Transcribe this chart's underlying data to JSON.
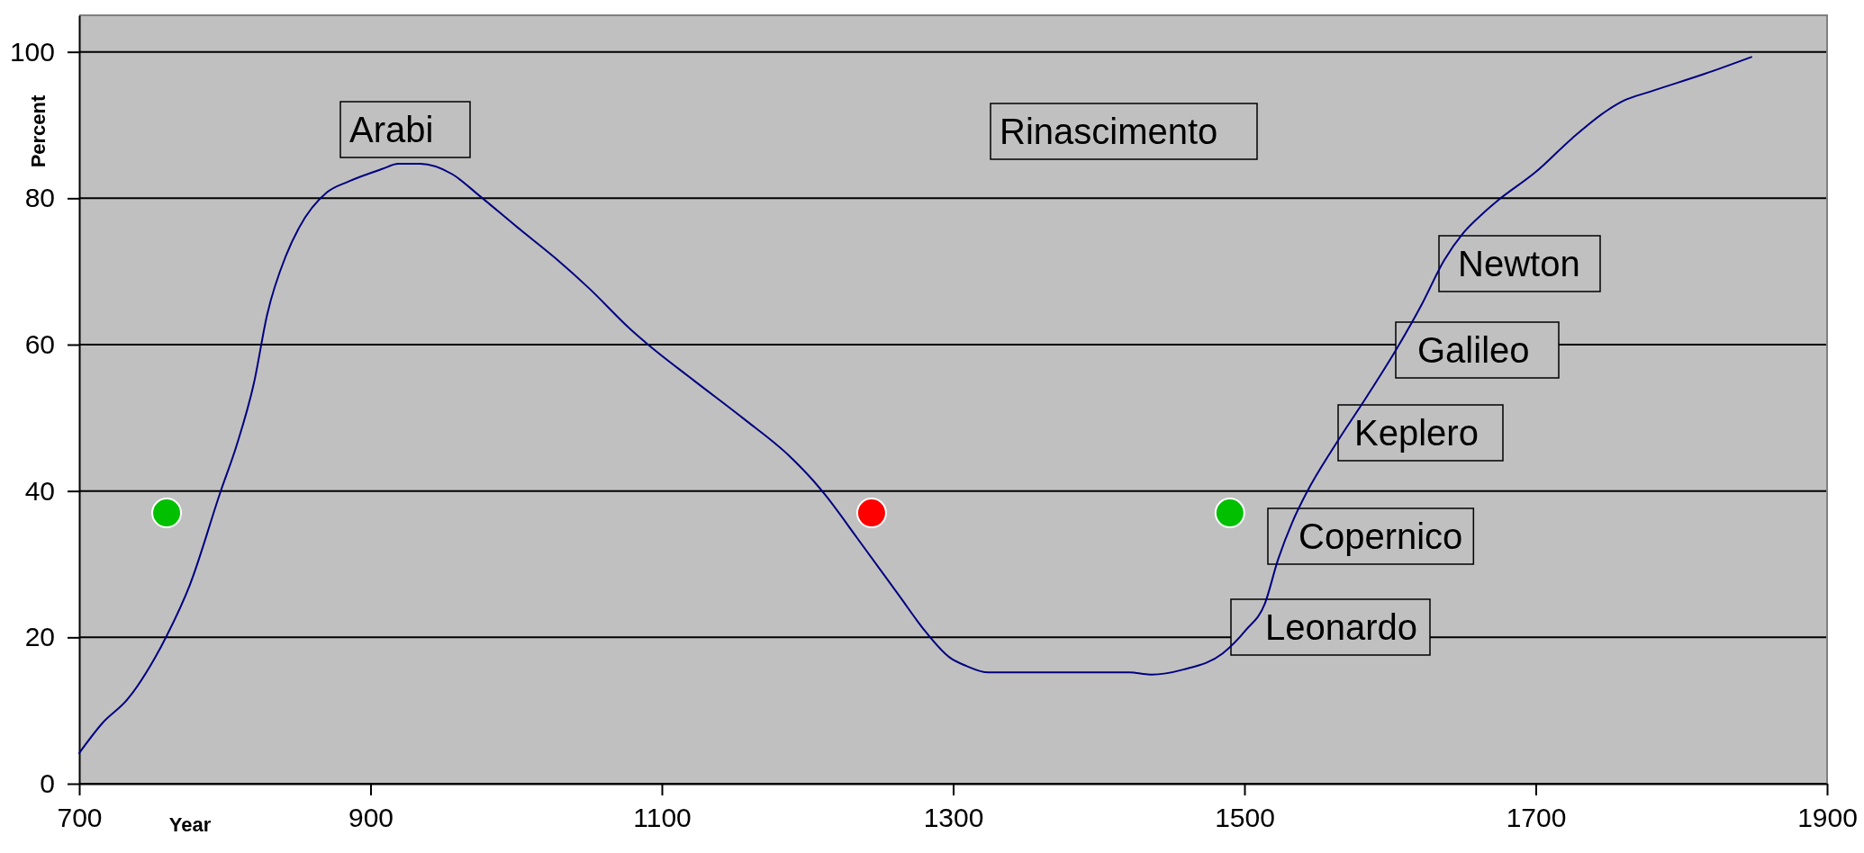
{
  "chart_data": {
    "type": "line",
    "xlabel": "Year",
    "ylabel": "Percent",
    "xlim": [
      700,
      1900
    ],
    "xticks": [
      700,
      900,
      1100,
      1300,
      1500,
      1700,
      1900
    ],
    "ylim": [
      0,
      105
    ],
    "yticks": [
      0,
      20,
      40,
      60,
      80,
      100
    ],
    "grid": "y",
    "series": [
      {
        "color": "#000080",
        "marker": "none",
        "x": [
          700,
          716,
          733,
          752,
          760,
          776,
          797,
          808,
          820,
          829,
          842,
          851,
          870,
          885,
          908,
          919,
          934,
          956,
          975,
          1001,
          1027,
          1050,
          1079,
          1090,
          1122,
          1156,
          1188,
          1204,
          1212,
          1234,
          1264,
          1279,
          1298,
          1309,
          1324,
          1421,
          1436,
          1458,
          1485,
          1501,
          1514,
          1523,
          1533,
          1543,
          1562,
          1584,
          1605,
          1622,
          1637,
          1650,
          1663,
          1674,
          1700,
          1725,
          1749,
          1760,
          1779,
          1816,
          1848
        ],
        "values": [
          4.2,
          8.3,
          11.5,
          17.2,
          20.2,
          27.2,
          39.9,
          46.2,
          54.8,
          64.1,
          72.2,
          76.0,
          80.8,
          82.3,
          84.0,
          84.7,
          84.7,
          83.3,
          80.3,
          76.0,
          71.8,
          67.7,
          62.0,
          60.1,
          55.1,
          49.9,
          44.7,
          41.4,
          39.5,
          33.6,
          25.4,
          21.3,
          17.2,
          16.1,
          15.2,
          15.2,
          14.9,
          15.6,
          17.8,
          21.0,
          24.6,
          30.6,
          35.8,
          39.9,
          46.2,
          52.9,
          59.6,
          65.6,
          71.5,
          75.2,
          77.8,
          79.7,
          83.6,
          88.2,
          92.0,
          93.3,
          94.6,
          97.0,
          99.3
        ]
      },
      {
        "type": "scatter",
        "color": "#00c000",
        "marker": "circle",
        "x": [
          760,
          1490
        ],
        "values": [
          37,
          37
        ]
      },
      {
        "type": "scatter",
        "color": "#ff0000",
        "marker": "circle",
        "x": [
          1244
        ],
        "values": [
          37
        ]
      }
    ],
    "annotations": [
      "Arabi",
      "Rinascimento",
      "Newton",
      "Galileo",
      "Keplero",
      "Copernico",
      "Leonardo"
    ]
  }
}
